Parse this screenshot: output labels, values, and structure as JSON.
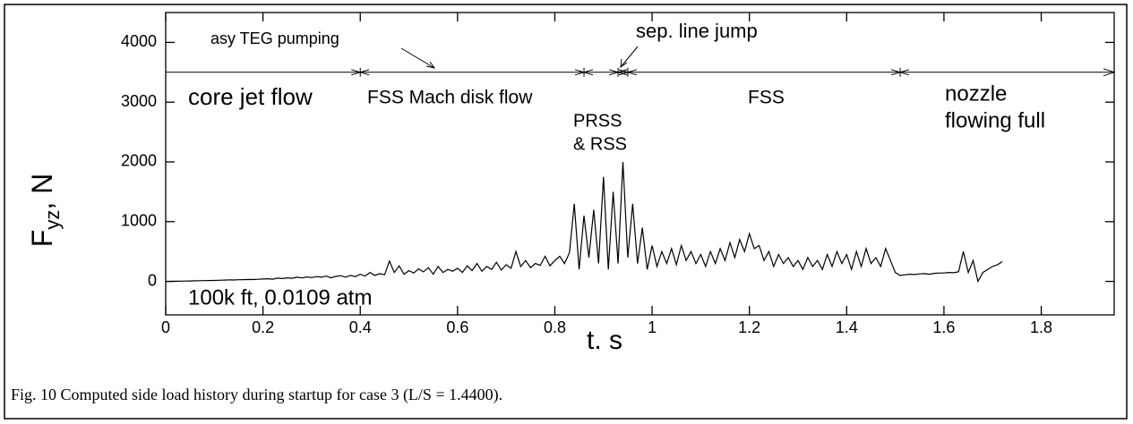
{
  "chart_data": {
    "type": "line",
    "y_label": {
      "main": "F",
      "sub": "yz",
      "rest": ", N"
    },
    "x_label": "t. s",
    "caption": "Fig. 10  Computed side load history during startup for case 3 (L/S = 1.4400).",
    "color": "#000000",
    "xlim": [
      0,
      1.95
    ],
    "ylim": [
      -560,
      4500
    ],
    "xticks": [
      0,
      0.2,
      0.4,
      0.6,
      0.8,
      1,
      1.2,
      1.4,
      1.6,
      1.8
    ],
    "yticks": [
      0,
      1000,
      2000,
      3000,
      4000
    ],
    "phase_line": {
      "y": 3500,
      "marks": [
        0.4,
        0.86,
        0.93,
        0.95,
        1.51
      ]
    },
    "annotations": [
      {
        "lines": [
          "asy TEG pumping"
        ]
      },
      {
        "lines": [
          "sep. line jump"
        ]
      },
      {
        "lines": [
          "core jet flow"
        ]
      },
      {
        "lines": [
          "FSS Mach disk flow"
        ]
      },
      {
        "lines": [
          "PRSS",
          "& RSS"
        ]
      },
      {
        "lines": [
          "FSS"
        ]
      },
      {
        "lines": [
          "nozzle",
          "flowing full"
        ]
      },
      {
        "lines": [
          "100k ft, 0.0109 atm"
        ]
      }
    ],
    "x": [
      0,
      0.01,
      0.02,
      0.03,
      0.04,
      0.05,
      0.06,
      0.07,
      0.08,
      0.09,
      0.1,
      0.11,
      0.12,
      0.13,
      0.14,
      0.15,
      0.16,
      0.17,
      0.18,
      0.19,
      0.2,
      0.21,
      0.22,
      0.23,
      0.24,
      0.25,
      0.26,
      0.27,
      0.28,
      0.29,
      0.3,
      0.31,
      0.32,
      0.33,
      0.34,
      0.35,
      0.36,
      0.37,
      0.38,
      0.39,
      0.4,
      0.41,
      0.42,
      0.43,
      0.44,
      0.45,
      0.46,
      0.47,
      0.48,
      0.49,
      0.5,
      0.51,
      0.52,
      0.53,
      0.54,
      0.55,
      0.56,
      0.57,
      0.58,
      0.59,
      0.6,
      0.61,
      0.62,
      0.63,
      0.64,
      0.65,
      0.66,
      0.67,
      0.68,
      0.69,
      0.7,
      0.71,
      0.72,
      0.73,
      0.74,
      0.75,
      0.76,
      0.77,
      0.78,
      0.79,
      0.8,
      0.81,
      0.82,
      0.83,
      0.84,
      0.85,
      0.86,
      0.87,
      0.88,
      0.89,
      0.9,
      0.91,
      0.92,
      0.93,
      0.94,
      0.95,
      0.96,
      0.97,
      0.98,
      0.99,
      1,
      1.01,
      1.02,
      1.03,
      1.04,
      1.05,
      1.06,
      1.07,
      1.08,
      1.09,
      1.1,
      1.11,
      1.12,
      1.13,
      1.14,
      1.15,
      1.16,
      1.17,
      1.18,
      1.19,
      1.2,
      1.21,
      1.22,
      1.23,
      1.24,
      1.25,
      1.26,
      1.27,
      1.28,
      1.29,
      1.3,
      1.31,
      1.32,
      1.33,
      1.34,
      1.35,
      1.36,
      1.37,
      1.38,
      1.39,
      1.4,
      1.41,
      1.42,
      1.43,
      1.44,
      1.45,
      1.46,
      1.47,
      1.48,
      1.49,
      1.5,
      1.51,
      1.52,
      1.53,
      1.54,
      1.55,
      1.56,
      1.57,
      1.58,
      1.59,
      1.6,
      1.61,
      1.62,
      1.63,
      1.64,
      1.65,
      1.66,
      1.67,
      1.68,
      1.69,
      1.7,
      1.71,
      1.72
    ],
    "values": [
      0,
      2,
      3,
      5,
      6,
      8,
      10,
      12,
      14,
      15,
      17,
      20,
      22,
      25,
      24,
      28,
      30,
      33,
      32,
      36,
      40,
      45,
      38,
      55,
      48,
      60,
      52,
      70,
      58,
      75,
      65,
      80,
      70,
      90,
      60,
      85,
      95,
      70,
      100,
      80,
      120,
      90,
      150,
      100,
      130,
      110,
      340,
      150,
      260,
      120,
      180,
      140,
      210,
      160,
      230,
      120,
      250,
      150,
      200,
      170,
      220,
      150,
      260,
      180,
      300,
      170,
      250,
      200,
      320,
      190,
      280,
      220,
      500,
      250,
      350,
      230,
      300,
      270,
      420,
      260,
      350,
      420,
      300,
      480,
      1300,
      200,
      1100,
      400,
      1200,
      300,
      1750,
      200,
      1500,
      300,
      2000,
      400,
      1300,
      300,
      900,
      200,
      600,
      250,
      500,
      300,
      550,
      280,
      600,
      350,
      500,
      300,
      450,
      250,
      500,
      300,
      550,
      350,
      650,
      400,
      700,
      500,
      800,
      550,
      600,
      350,
      500,
      250,
      450,
      300,
      400,
      250,
      350,
      200,
      400,
      250,
      350,
      200,
      450,
      250,
      500,
      300,
      450,
      200,
      500,
      250,
      550,
      300,
      400,
      250,
      550,
      350,
      150,
      100,
      110,
      120,
      115,
      125,
      130,
      120,
      135,
      140,
      140,
      150,
      145,
      160,
      500,
      150,
      350,
      0,
      150,
      200,
      250,
      280,
      330
    ]
  }
}
